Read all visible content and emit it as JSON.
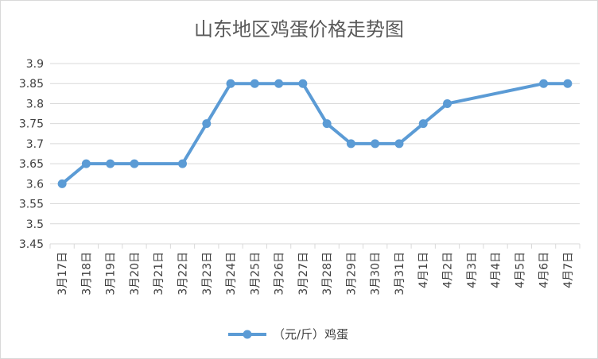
{
  "chart_data": {
    "type": "line",
    "title": "山东地区鸡蛋价格走势图",
    "categories": [
      "3月17日",
      "3月18日",
      "3月19日",
      "3月20日",
      "3月21日",
      "3月22日",
      "3月23日",
      "3月24日",
      "3月25日",
      "3月26日",
      "3月27日",
      "3月28日",
      "3月29日",
      "3月30日",
      "3月31日",
      "4月1日",
      "4月2日",
      "4月3日",
      "4月4日",
      "4月5日",
      "4月6日",
      "4月7日"
    ],
    "series": [
      {
        "name": "（元/斤）鸡蛋",
        "color": "#5b9bd5",
        "values": [
          3.6,
          3.65,
          3.65,
          3.65,
          null,
          3.65,
          3.75,
          3.85,
          3.85,
          3.85,
          3.85,
          3.75,
          3.7,
          3.7,
          3.7,
          3.75,
          3.8,
          null,
          null,
          null,
          3.85,
          3.85
        ]
      }
    ],
    "ylim": [
      3.45,
      3.9
    ],
    "yticks": [
      "3.45",
      "3.5",
      "3.55",
      "3.6",
      "3.65",
      "3.7",
      "3.75",
      "3.8",
      "3.85",
      "3.9"
    ],
    "grid": true,
    "legend": "bottom",
    "connect_gaps": true
  }
}
